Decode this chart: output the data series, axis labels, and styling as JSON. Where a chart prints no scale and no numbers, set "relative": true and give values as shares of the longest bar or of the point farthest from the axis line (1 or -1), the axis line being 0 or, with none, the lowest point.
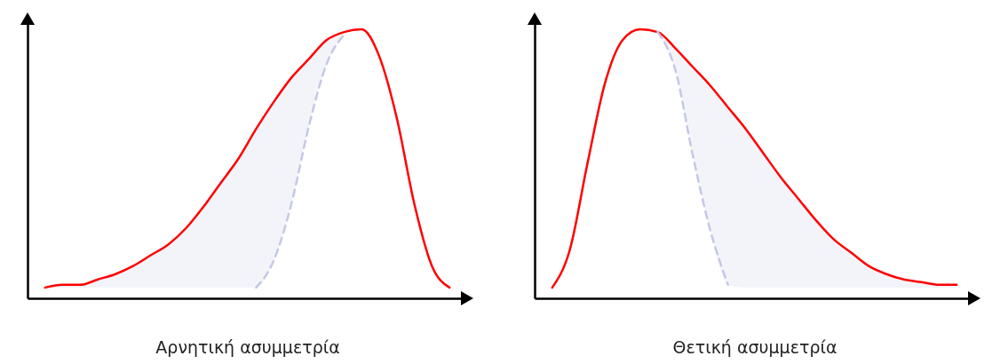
{
  "chart_data": [
    {
      "type": "line",
      "relative": true,
      "xlabel": "Αρνητική ασυμμετρία",
      "grid": false,
      "categories": [
        null,
        null,
        null,
        null,
        null,
        null,
        null,
        null,
        null,
        null,
        null,
        null,
        null,
        null,
        null,
        null,
        null,
        null,
        null,
        null,
        null,
        null,
        null,
        null
      ],
      "series": [
        {
          "color": "#ff0000",
          "values": [
            0.04,
            0.05,
            0.05,
            0.07,
            0.09,
            0.12,
            0.16,
            0.2,
            0.26,
            0.34,
            0.43,
            0.52,
            0.63,
            0.73,
            0.82,
            0.89,
            0.96,
            0.99,
            1.0,
            0.9,
            0.67,
            0.35,
            0.12,
            0.04
          ],
          "lower": [
            0.04,
            0.04,
            0.04,
            0.04,
            0.04,
            0.04,
            0.04,
            0.04,
            0.04,
            0.04,
            0.04,
            0.04,
            0.04,
            0.14,
            0.35,
            0.64,
            0.87,
            0.98,
            null,
            null,
            null,
            null,
            null,
            null
          ],
          "upper": [
            0.04,
            0.05,
            0.05,
            0.07,
            0.09,
            0.12,
            0.16,
            0.2,
            0.26,
            0.34,
            0.43,
            0.52,
            0.63,
            0.73,
            0.82,
            0.89,
            0.96,
            0.99,
            null,
            null,
            null,
            null,
            null,
            null
          ]
        },
        {
          "color": "#c5c8e6",
          "line_style": "dashed",
          "values": [
            null,
            null,
            null,
            null,
            null,
            null,
            null,
            null,
            null,
            null,
            null,
            null,
            0.04,
            0.14,
            0.35,
            0.64,
            0.87,
            0.98,
            null,
            null,
            null,
            null,
            null,
            null
          ]
        }
      ]
    },
    {
      "type": "line",
      "relative": true,
      "xlabel": "Θετική ασυμμετρία",
      "grid": false,
      "categories": [
        null,
        null,
        null,
        null,
        null,
        null,
        null,
        null,
        null,
        null,
        null,
        null,
        null,
        null,
        null,
        null,
        null,
        null,
        null,
        null,
        null,
        null,
        null,
        null
      ],
      "series": [
        {
          "color": "#ff0000",
          "values": [
            0.04,
            0.18,
            0.5,
            0.8,
            0.96,
            1.0,
            0.99,
            0.93,
            0.86,
            0.79,
            0.71,
            0.63,
            0.54,
            0.45,
            0.37,
            0.29,
            0.22,
            0.17,
            0.12,
            0.09,
            0.07,
            0.06,
            0.05,
            0.05
          ],
          "lower": [
            null,
            null,
            null,
            null,
            null,
            null,
            0.99,
            0.85,
            0.53,
            0.25,
            0.05,
            0.04,
            0.04,
            0.04,
            0.04,
            0.04,
            0.04,
            0.04,
            0.04,
            0.04,
            0.04,
            0.04,
            0.04,
            0.04
          ],
          "upper": [
            null,
            null,
            null,
            null,
            null,
            null,
            0.99,
            0.93,
            0.86,
            0.79,
            0.71,
            0.63,
            0.54,
            0.45,
            0.37,
            0.29,
            0.22,
            0.17,
            0.12,
            0.09,
            0.07,
            0.06,
            0.05,
            0.05
          ]
        },
        {
          "color": "#c5c8e6",
          "line_style": "dashed",
          "values": [
            null,
            null,
            null,
            null,
            null,
            null,
            0.99,
            0.85,
            0.53,
            0.25,
            0.05,
            null,
            null,
            null,
            null,
            null,
            null,
            null,
            null,
            null,
            null,
            null,
            null,
            null
          ]
        }
      ]
    }
  ]
}
